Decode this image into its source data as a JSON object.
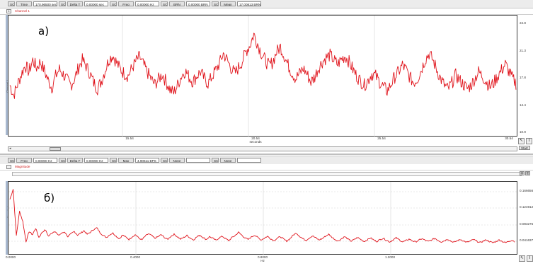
{
  "toolbar1": {
    "items": [
      {
        "kind": "button",
        "text": "SC"
      },
      {
        "kind": "label",
        "text": "Time"
      },
      {
        "kind": "value",
        "text": "170.96500 sec"
      },
      {
        "kind": "button",
        "text": "SC"
      },
      {
        "kind": "label",
        "text": "Delta T"
      },
      {
        "kind": "value",
        "text": "0.00000 sec"
      },
      {
        "kind": "button",
        "text": "SC"
      },
      {
        "kind": "label",
        "text": "Freq"
      },
      {
        "kind": "value",
        "text": "0.00000 Hz"
      },
      {
        "kind": "button",
        "text": "SC"
      },
      {
        "kind": "label",
        "text": "BRN"
      },
      {
        "kind": "value",
        "text": "0.00000 BRN"
      },
      {
        "kind": "button",
        "text": "SC"
      },
      {
        "kind": "label",
        "text": "Mean"
      },
      {
        "kind": "value",
        "text": "17.00813 BRN"
      }
    ]
  },
  "channel1": {
    "button": "1",
    "label": "Channel 1",
    "ylabel": "Channel 1"
  },
  "panel1": {
    "marker": "а)",
    "right_ticks": [
      "24.8",
      "21.3",
      "17.8",
      "14.4",
      "10.9"
    ],
    "x_ticks": [
      "15.54",
      "20.54",
      "25.54",
      "30.54"
    ],
    "x_unit": "seconds",
    "start_label": "Start"
  },
  "toolbar2": {
    "items": [
      {
        "kind": "button",
        "text": "SC"
      },
      {
        "kind": "label",
        "text": "Freq"
      },
      {
        "kind": "value",
        "text": "0.00000 Hz"
      },
      {
        "kind": "button",
        "text": "SC"
      },
      {
        "kind": "label",
        "text": "Delta F"
      },
      {
        "kind": "value",
        "text": "0.00000 Hz"
      },
      {
        "kind": "button",
        "text": "SC"
      },
      {
        "kind": "label",
        "text": "Max"
      },
      {
        "kind": "value",
        "text": "4.90611 BPS"
      },
      {
        "kind": "button",
        "text": "SC"
      },
      {
        "kind": "label",
        "text": "None"
      },
      {
        "kind": "value",
        "text": ""
      },
      {
        "kind": "button",
        "text": "SC"
      },
      {
        "kind": "label",
        "text": "None"
      },
      {
        "kind": "value",
        "text": ""
      }
    ]
  },
  "channel2": {
    "label": "Magnitude",
    "ylabel": "Magnitude"
  },
  "panel2": {
    "marker": "б)",
    "right_ticks": [
      "0.166656",
      "0.124912",
      "0.083275",
      "0.041637"
    ],
    "x_ticks": [
      "0.0000",
      "0.4000",
      "0.8000",
      "1.2000"
    ],
    "x_unit": "Hz",
    "small_buttons": [
      "▤",
      "▥"
    ]
  },
  "icons": {
    "tool": "pointer-icon",
    "cursor": "ibeam-icon"
  },
  "colors": {
    "signal": "#e0141c",
    "edge": "#a8b8cf",
    "grid": "#d6d6d6"
  },
  "chart_data": [
    {
      "type": "line",
      "title": "",
      "xlabel": "seconds",
      "ylabel": "Channel 1",
      "x_start": 12.0,
      "x_end": 30.54,
      "ylim": [
        10.9,
        24.8
      ],
      "series": [
        {
          "values": [
            16.8,
            15.6,
            16.9,
            18.1,
            19.2,
            18.4,
            19.8,
            18.9,
            19.6,
            18.6,
            17.4,
            16.5,
            17.9,
            18.7,
            18.1,
            17.4,
            16.8,
            17.6,
            18.9,
            19.8,
            19.1,
            18.2,
            17.1,
            16.4,
            17.3,
            18.6,
            19.9,
            20.4,
            19.5,
            18.7,
            18.2,
            17.9,
            18.8,
            19.6,
            20.2,
            19.3,
            18.4,
            17.6,
            16.9,
            17.5,
            18.1,
            17.2,
            16.3,
            15.9,
            16.8,
            17.9,
            18.5,
            17.8,
            17.2,
            17.9,
            18.4,
            17.6,
            17.0,
            17.8,
            18.6,
            19.4,
            20.6,
            19.8,
            18.9,
            18.2,
            18.9,
            19.7,
            20.9,
            21.6,
            22.9,
            21.8,
            20.6,
            19.8,
            19.1,
            19.6,
            20.8,
            21.4,
            20.3,
            19.2,
            18.3,
            17.6,
            18.2,
            18.8,
            18.1,
            17.2,
            17.8,
            18.9,
            19.6,
            20.1,
            20.4,
            19.8,
            19.3,
            19.9,
            20.3,
            19.6,
            18.7,
            17.9,
            17.3,
            16.8,
            17.4,
            18.2,
            17.9,
            17.2,
            16.6,
            16.1,
            16.9,
            17.8,
            18.4,
            19.2,
            18.6,
            17.7,
            17.1,
            17.6,
            18.7,
            19.9,
            20.6,
            19.8,
            18.7,
            17.6,
            16.8,
            16.3,
            17.1,
            18.0,
            17.4,
            16.9,
            16.4,
            16.8,
            17.6,
            18.4,
            17.9,
            17.2,
            16.6,
            17.1,
            17.9,
            18.6,
            19.3,
            18.4,
            17.5,
            16.9
          ]
        }
      ]
    },
    {
      "type": "line",
      "title": "",
      "xlabel": "Hz",
      "ylabel": "Magnitude",
      "x_start": 0.0,
      "x_end": 1.48,
      "ylim": [
        0.021,
        0.19
      ],
      "series": [
        {
          "values": [
            0.15,
            0.175,
            0.06,
            0.12,
            0.095,
            0.045,
            0.07,
            0.062,
            0.078,
            0.055,
            0.068,
            0.074,
            0.058,
            0.066,
            0.071,
            0.06,
            0.065,
            0.069,
            0.057,
            0.064,
            0.07,
            0.061,
            0.066,
            0.072,
            0.063,
            0.068,
            0.075,
            0.079,
            0.067,
            0.06,
            0.055,
            0.062,
            0.066,
            0.058,
            0.052,
            0.061,
            0.056,
            0.05,
            0.057,
            0.062,
            0.054,
            0.049,
            0.058,
            0.064,
            0.06,
            0.053,
            0.057,
            0.062,
            0.055,
            0.05,
            0.058,
            0.063,
            0.057,
            0.051,
            0.055,
            0.06,
            0.054,
            0.049,
            0.056,
            0.061,
            0.055,
            0.05,
            0.057,
            0.053,
            0.048,
            0.054,
            0.058,
            0.052,
            0.047,
            0.055,
            0.06,
            0.068,
            0.061,
            0.054,
            0.05,
            0.056,
            0.061,
            0.055,
            0.049,
            0.053,
            0.058,
            0.052,
            0.047,
            0.053,
            0.057,
            0.051,
            0.046,
            0.052,
            0.061,
            0.066,
            0.058,
            0.052,
            0.048,
            0.054,
            0.059,
            0.054,
            0.049,
            0.052,
            0.058,
            0.063,
            0.056,
            0.05,
            0.046,
            0.052,
            0.057,
            0.051,
            0.046,
            0.05,
            0.055,
            0.05,
            0.045,
            0.049,
            0.054,
            0.049,
            0.045,
            0.05,
            0.053,
            0.048,
            0.044,
            0.049,
            0.054,
            0.049,
            0.044,
            0.047,
            0.051,
            0.047,
            0.044,
            0.048,
            0.052,
            0.048,
            0.045,
            0.049,
            0.053,
            0.048,
            0.044,
            0.047,
            0.051,
            0.046,
            0.043,
            0.047,
            0.05,
            0.046,
            0.043,
            0.046,
            0.05,
            0.046,
            0.042,
            0.046,
            0.049,
            0.045,
            0.042,
            0.045,
            0.049,
            0.045,
            0.042,
            0.046,
            0.048,
            0.044
          ]
        }
      ]
    }
  ]
}
